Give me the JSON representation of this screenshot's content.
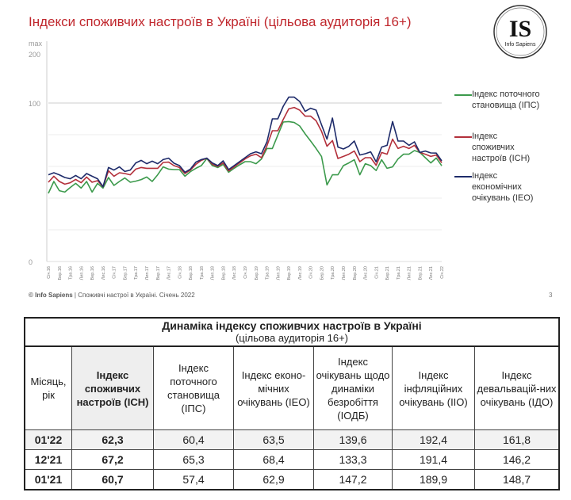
{
  "title": "Індекси споживчих настроїв в Україні (цільова аудиторія 16+)",
  "logo": {
    "text": "IS",
    "subtext": "Info Sapiens"
  },
  "footer": {
    "brand": "© Info Sapiens",
    "text": " | Споживчі настрої в Україні. Січень 2022",
    "page": "3"
  },
  "chart_data": {
    "type": "line",
    "title": "Індекси споживчих настроїв в Україні (цільова аудиторія 16+)",
    "y_ticks": [
      "max",
      "200",
      "100",
      "0"
    ],
    "ylim": [
      0,
      200
    ],
    "grid": true,
    "legend_position": "right",
    "x_labels": [
      "Січ.16",
      "Бер.16",
      "Тра.16",
      "Лип.16",
      "Вер.16",
      "Лис.16",
      "Січ.17",
      "Бер.17",
      "Тра.17",
      "Лип.17",
      "Вер.17",
      "Лис.17",
      "Січ.18",
      "Бер.18",
      "Тра.18",
      "Лип.18",
      "Вер.18",
      "Лис.18",
      "Січ.19",
      "Бер.19",
      "Тра.19",
      "Лип.19",
      "Вер.19",
      "Лис.19",
      "Січ.20",
      "Бер.20",
      "Тра.20",
      "Лип.20",
      "Вер.20",
      "Лис.20",
      "Січ.21",
      "Бер.21",
      "Тра.21",
      "Лип.21",
      "Вер.21",
      "Лис.21",
      "Січ.22"
    ],
    "series": [
      {
        "name": "Індекс поточного становища (ІПС)",
        "color": "#3c9a4c",
        "values": [
          43,
          50.5,
          44.7,
          43.8,
          46.7,
          49.3,
          46.3,
          50.5,
          43.8,
          49.3,
          46.3,
          53,
          48,
          50.5,
          52.7,
          50,
          50.7,
          51.7,
          53.3,
          50.5,
          54.7,
          59.7,
          58.3,
          58,
          58,
          53.8,
          56.7,
          58.8,
          60.5,
          65,
          60.5,
          59.3,
          61.3,
          56.3,
          58.8,
          61,
          63,
          63,
          61.7,
          64.7,
          71.3,
          71.3,
          79.7,
          88,
          88.3,
          87.7,
          85.5,
          80.5,
          76,
          71.3,
          66.3,
          48.3,
          54.7,
          54.7,
          60.5,
          62.2,
          64.2,
          54.7,
          61.7,
          60.5,
          57.4,
          64.2,
          58.8,
          59.7,
          64.7,
          67.7,
          67.7,
          70,
          68.8,
          65.5,
          62.2,
          65.3,
          60.4
        ]
      },
      {
        "name": "Індекс споживчих настроїв (ІСН)",
        "color": "#b3303b",
        "values": [
          50,
          53.8,
          50.5,
          48.8,
          49.7,
          51.8,
          49.7,
          53.3,
          50,
          51,
          47.2,
          57.2,
          53.8,
          56,
          55.5,
          54.7,
          58.3,
          59.3,
          58.8,
          58.8,
          58.8,
          62.5,
          62.7,
          60.5,
          59.3,
          55.5,
          57.7,
          61.3,
          63.8,
          65.2,
          61.3,
          60,
          62.2,
          57.2,
          59.7,
          62.2,
          64.7,
          66.7,
          67.7,
          65.5,
          73,
          82.5,
          82.5,
          89.7,
          96.3,
          97.2,
          95.5,
          91.7,
          91.7,
          88.8,
          82.2,
          72.7,
          76.3,
          65,
          66.3,
          67.7,
          69.7,
          63,
          65.5,
          65.5,
          60.7,
          68.8,
          67.7,
          77.2,
          71.3,
          72.7,
          71.3,
          73.3,
          68.8,
          67.7,
          66.3,
          67.2,
          62.3
        ]
      },
      {
        "name": "Індекс економічних очікувань (ІЕО)",
        "color": "#1e2b6a",
        "values": [
          54.7,
          56,
          54.7,
          53,
          52.2,
          54.3,
          52.2,
          55.5,
          53.8,
          52.2,
          47.2,
          59.3,
          57.7,
          59.7,
          56.8,
          57.7,
          62.2,
          63.8,
          61.7,
          63.3,
          61.7,
          64.3,
          65.2,
          62,
          60.5,
          56.3,
          58.3,
          62.7,
          64.3,
          65.2,
          62.2,
          60.5,
          63.5,
          58,
          60.5,
          63,
          65.5,
          68,
          69.2,
          68,
          75.5,
          90,
          90,
          98,
          112,
          112,
          103,
          94.7,
          96.7,
          95.5,
          86.3,
          77.2,
          90.5,
          72.2,
          71,
          72.7,
          76,
          67.2,
          68,
          69.2,
          62.9,
          72.2,
          73.3,
          88.3,
          76,
          76,
          73.3,
          75.5,
          68.8,
          69.7,
          68.5,
          68.4,
          63.5
        ]
      }
    ]
  },
  "table": {
    "caption": "Динаміка індексу споживчих настроїв в Україні",
    "subcaption": "(цільова аудиторія 16+)",
    "headers": [
      "Місяць, рік",
      "Індекс споживчих настроїв (ІСН)",
      "Індекс поточного становища (ІПС)",
      "Індекс еконо-мічних очікувань (ІЕО)",
      "Індекс очікувань щодо динаміки безробіття (ІОДБ)",
      "Індекс інфляційних очікувань (ІІО)",
      "Індекс девальвацій-них очікувань (ІДО)"
    ],
    "rows": [
      [
        "01'22",
        "62,3",
        "60,4",
        "63,5",
        "139,6",
        "192,4",
        "161,8"
      ],
      [
        "12'21",
        "67,2",
        "65,3",
        "68,4",
        "133,3",
        "191,4",
        "146,2"
      ],
      [
        "01'21",
        "60,7",
        "57,4",
        "62,9",
        "147,2",
        "189,9",
        "148,7"
      ]
    ]
  }
}
